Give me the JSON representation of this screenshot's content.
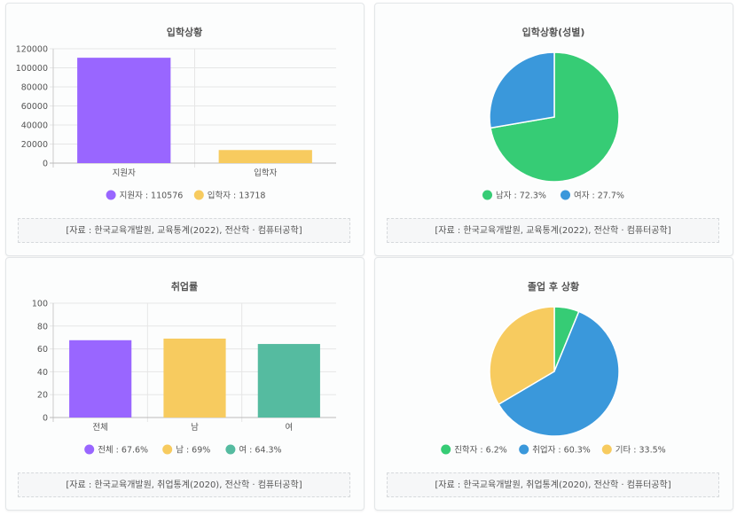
{
  "chart_data": [
    {
      "type": "bar",
      "title": "입학상황",
      "categories": [
        "지원자",
        "입학자"
      ],
      "values": [
        110576,
        13718
      ],
      "colors": [
        "#9966ff",
        "#f7cb5f"
      ],
      "ylim": [
        0,
        120000
      ],
      "yticks": [
        0,
        20000,
        40000,
        60000,
        80000,
        100000,
        120000
      ],
      "legend": [
        "지원자 : 110576",
        "입학자 : 13718"
      ],
      "source": "[자료 : 한국교육개발원, 교육통계(2022), 전산학 · 컴퓨터공학]"
    },
    {
      "type": "pie",
      "title": "입학상황(성별)",
      "labels": [
        "남자",
        "여자"
      ],
      "values": [
        72.3,
        27.7
      ],
      "colors": [
        "#36cc75",
        "#3a98db"
      ],
      "legend": [
        "남자 : 72.3%",
        "여자 : 27.7%"
      ],
      "source": "[자료 : 한국교육개발원, 교육통계(2022), 전산학 · 컴퓨터공학]"
    },
    {
      "type": "bar",
      "title": "취업률",
      "categories": [
        "전체",
        "남",
        "여"
      ],
      "values": [
        67.6,
        69,
        64.3
      ],
      "colors": [
        "#9966ff",
        "#f7cb5f",
        "#55bba0"
      ],
      "ylim": [
        0,
        100
      ],
      "yticks": [
        0,
        20,
        40,
        60,
        80,
        100
      ],
      "legend": [
        "전체 : 67.6%",
        "남 : 69%",
        "여 : 64.3%"
      ],
      "source": "[자료 : 한국교육개발원, 취업통계(2020), 전산학 · 컴퓨터공학]"
    },
    {
      "type": "pie",
      "title": "졸업 후 상황",
      "labels": [
        "진학자",
        "취업자",
        "기타"
      ],
      "values": [
        6.2,
        60.3,
        33.5
      ],
      "colors": [
        "#36cc75",
        "#3a98db",
        "#f7cb5f"
      ],
      "legend": [
        "진학자 : 6.2%",
        "취업자 : 60.3%",
        "기타 : 33.5%"
      ],
      "source": "[자료 : 한국교육개발원, 취업통계(2020), 전산학 · 컴퓨터공학]"
    }
  ]
}
